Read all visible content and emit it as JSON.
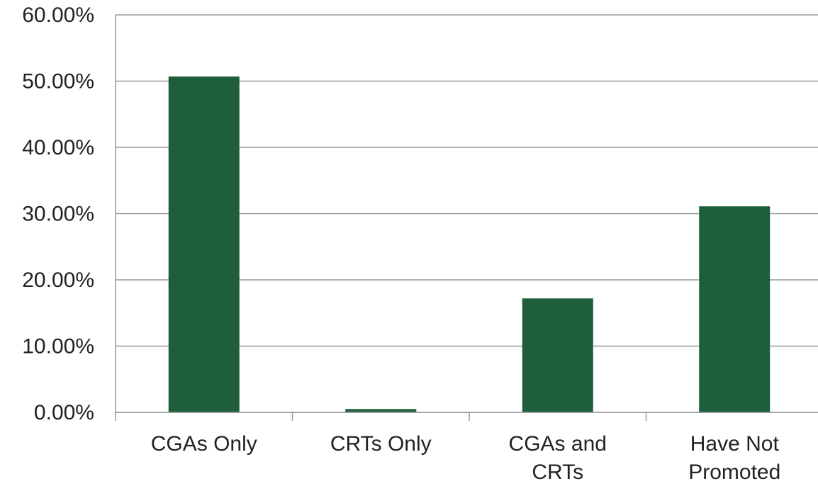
{
  "chart_data": {
    "type": "bar",
    "categories": [
      "CGAs Only",
      "CRTs Only",
      "CGAs and CRTs",
      "Have Not Promoted"
    ],
    "values": [
      50.7,
      0.5,
      17.2,
      31.1
    ],
    "color": "#1f5e3b",
    "ylim": [
      0,
      60
    ],
    "yticks": [
      {
        "value": 0,
        "label": "0.00%"
      },
      {
        "value": 10,
        "label": "10.00%"
      },
      {
        "value": 20,
        "label": "20.00%"
      },
      {
        "value": 30,
        "label": "30.00%"
      },
      {
        "value": 40,
        "label": "40.00%"
      },
      {
        "value": 50,
        "label": "50.00%"
      },
      {
        "value": 60,
        "label": "60.00%"
      }
    ],
    "grid": true
  }
}
